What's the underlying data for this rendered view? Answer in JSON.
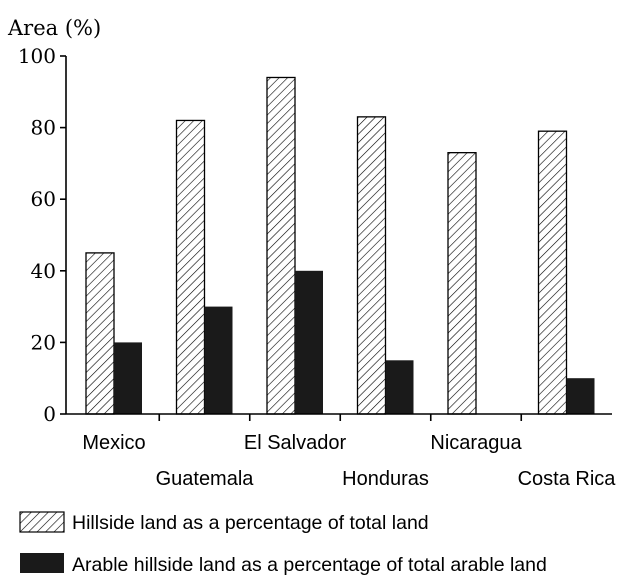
{
  "chart_data": {
    "type": "bar",
    "ylabel": "Area (%)",
    "ylim": [
      0,
      100
    ],
    "yticks": [
      0,
      20,
      40,
      60,
      80,
      100
    ],
    "categories": [
      "Mexico",
      "Guatemala",
      "El Salvador",
      "Honduras",
      "Nicaragua",
      "Costa Rica"
    ],
    "series": [
      {
        "name": "Hillside land as a percentage of total land",
        "pattern": "hatched",
        "values": [
          45,
          82,
          94,
          83,
          73,
          79
        ]
      },
      {
        "name": "Arable hillside land as a percentage of total arable land",
        "pattern": "solid",
        "values": [
          20,
          30,
          40,
          15,
          0,
          10
        ]
      }
    ],
    "colors": {
      "solid": "#1a1a1a",
      "hatch": "#000000",
      "background": "#ffffff"
    },
    "legend_position": "bottom"
  }
}
